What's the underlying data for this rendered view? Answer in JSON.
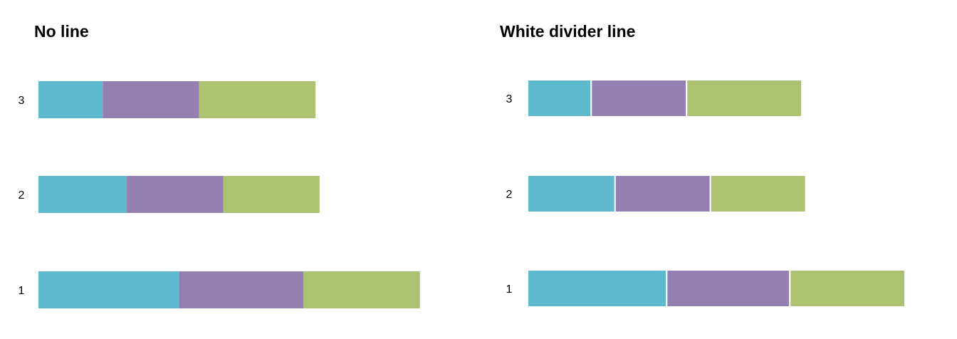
{
  "colors": {
    "series_a": "#5EB9CF",
    "series_b": "#947FB3",
    "series_c": "#ACC271",
    "divider": "#FFFFFF"
  },
  "chart_data": [
    {
      "type": "bar",
      "orientation": "horizontal",
      "stacked": true,
      "title": "No line",
      "divider_line": false,
      "categories": [
        "1",
        "2",
        "3"
      ],
      "series": [
        {
          "values": [
            35,
            22,
            16
          ]
        },
        {
          "values": [
            31,
            24,
            24
          ]
        },
        {
          "values": [
            29,
            24,
            29
          ]
        }
      ],
      "xlabel": "",
      "ylabel": "",
      "xlim": [
        0,
        95
      ],
      "grid": false,
      "legend": "none"
    },
    {
      "type": "bar",
      "orientation": "horizontal",
      "stacked": true,
      "title": "White divider line",
      "divider_line": true,
      "categories": [
        "1",
        "2",
        "3"
      ],
      "series": [
        {
          "values": [
            35,
            22,
            16
          ]
        },
        {
          "values": [
            31,
            24,
            24
          ]
        },
        {
          "values": [
            29,
            24,
            29
          ]
        }
      ],
      "xlabel": "",
      "ylabel": "",
      "xlim": [
        0,
        95
      ],
      "grid": false,
      "legend": "none"
    }
  ]
}
